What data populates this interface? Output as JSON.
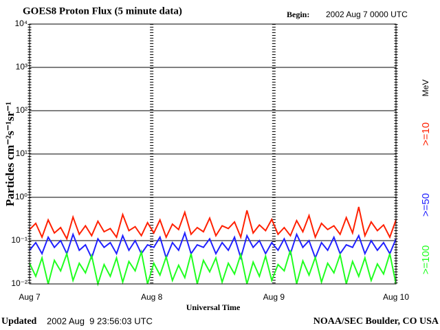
{
  "chart_data": {
    "type": "line",
    "title": "GOES8 Proton Flux (5 minute data)",
    "begin_label": "Begin:",
    "begin_value": "2002 Aug 7 0000 UTC",
    "ylabel": "Particles cm⁻²s⁻¹sr⁻¹",
    "xlabel": "Universal Time",
    "updated_label": "Updated",
    "updated_value": "2002 Aug  9 23:56:03 UTC",
    "credit": "NOAA/SEC Boulder, CO USA",
    "unit": "MeV",
    "log_y": true,
    "grid": true,
    "ylim": [
      0.01,
      10000
    ],
    "yticks": [
      {
        "value": 0.01,
        "label": "10⁻²"
      },
      {
        "value": 0.1,
        "label": "10⁻¹"
      },
      {
        "value": 1,
        "label": "10⁰"
      },
      {
        "value": 10,
        "label": "10¹"
      },
      {
        "value": 100,
        "label": "10²"
      },
      {
        "value": 1000,
        "label": "10³"
      },
      {
        "value": 10000,
        "label": "10⁴"
      }
    ],
    "xlim": [
      0,
      3
    ],
    "xticks": [
      {
        "value": 0,
        "label": "Aug 7"
      },
      {
        "value": 1,
        "label": "Aug 8"
      },
      {
        "value": 2,
        "label": "Aug 9"
      },
      {
        "value": 3,
        "label": "Aug 10"
      }
    ],
    "series": [
      {
        "name": ">=10",
        "color": "#ff2000",
        "values": [
          0.18,
          0.25,
          0.12,
          0.3,
          0.15,
          0.2,
          0.11,
          0.35,
          0.14,
          0.22,
          0.13,
          0.28,
          0.16,
          0.19,
          0.12,
          0.4,
          0.17,
          0.21,
          0.13,
          0.26,
          0.15,
          0.3,
          0.12,
          0.24,
          0.18,
          0.45,
          0.14,
          0.2,
          0.16,
          0.33,
          0.13,
          0.22,
          0.19,
          0.27,
          0.12,
          0.5,
          0.15,
          0.23,
          0.17,
          0.31,
          0.14,
          0.2,
          0.13,
          0.29,
          0.16,
          0.38,
          0.12,
          0.25,
          0.18,
          0.22,
          0.14,
          0.34,
          0.15,
          0.6,
          0.13,
          0.27,
          0.17,
          0.23,
          0.12,
          0.3
        ]
      },
      {
        "name": ">=50",
        "color": "#2020ff",
        "values": [
          0.06,
          0.09,
          0.05,
          0.12,
          0.07,
          0.1,
          0.05,
          0.14,
          0.06,
          0.08,
          0.04,
          0.11,
          0.07,
          0.09,
          0.05,
          0.13,
          0.06,
          0.1,
          0.05,
          0.08,
          0.07,
          0.12,
          0.04,
          0.09,
          0.06,
          0.15,
          0.05,
          0.08,
          0.07,
          0.11,
          0.05,
          0.09,
          0.06,
          0.12,
          0.04,
          0.13,
          0.07,
          0.1,
          0.05,
          0.09,
          0.06,
          0.11,
          0.05,
          0.14,
          0.07,
          0.1,
          0.04,
          0.09,
          0.06,
          0.12,
          0.05,
          0.08,
          0.07,
          0.13,
          0.05,
          0.1,
          0.06,
          0.09,
          0.05,
          0.11
        ]
      },
      {
        "name": ">=100",
        "color": "#20ff20",
        "values": [
          0.03,
          0.015,
          0.04,
          0.01,
          0.035,
          0.02,
          0.05,
          0.012,
          0.03,
          0.018,
          0.045,
          0.01,
          0.028,
          0.015,
          0.04,
          0.011,
          0.033,
          0.02,
          0.055,
          0.01,
          0.03,
          0.016,
          0.042,
          0.012,
          0.027,
          0.014,
          0.05,
          0.01,
          0.035,
          0.019,
          0.04,
          0.011,
          0.03,
          0.017,
          0.048,
          0.01,
          0.032,
          0.015,
          0.044,
          0.012,
          0.028,
          0.02,
          0.06,
          0.01,
          0.034,
          0.016,
          0.041,
          0.011,
          0.03,
          0.018,
          0.047,
          0.01,
          0.033,
          0.015,
          0.04,
          0.012,
          0.029,
          0.017,
          0.05,
          0.01
        ]
      }
    ]
  }
}
